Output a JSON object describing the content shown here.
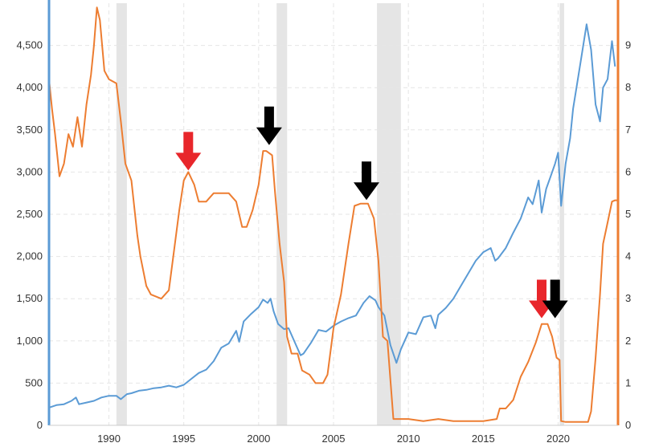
{
  "chart_data": {
    "type": "line",
    "title": "",
    "xlabel": "",
    "ylabel": "",
    "y2label": "",
    "grid": true,
    "legend": "none",
    "xlim": [
      1986,
      2024
    ],
    "ylim": [
      0,
      5000
    ],
    "y2lim": [
      0,
      10
    ],
    "x_ticks": [
      1990,
      1995,
      2000,
      2005,
      2010,
      2015,
      2020
    ],
    "x_tick_labels": [
      "1990",
      "1995",
      "2000",
      "2005",
      "2010",
      "2015",
      "2020"
    ],
    "y_ticks": [
      0,
      500,
      1000,
      1500,
      2000,
      2500,
      3000,
      3500,
      4000,
      4500
    ],
    "y_tick_labels": [
      "0",
      "500",
      "1,000",
      "1,500",
      "2,000",
      "2,500",
      "3,000",
      "3,500",
      "4,000",
      "4,500"
    ],
    "y2_ticks": [
      0,
      1,
      2,
      3,
      4,
      5,
      6,
      7,
      8,
      9
    ],
    "y2_tick_labels": [
      "0",
      "1",
      "2",
      "3",
      "4",
      "5",
      "6",
      "7",
      "8",
      "9"
    ],
    "recessions": [
      [
        1990.5,
        1991.2
      ],
      [
        2001.2,
        2001.9
      ],
      [
        2007.9,
        2009.5
      ],
      [
        2020.1,
        2020.4
      ]
    ],
    "series": [
      {
        "axis": "left",
        "color": "#5b9bd5",
        "points": [
          [
            1986.0,
            210
          ],
          [
            1986.5,
            240
          ],
          [
            1987.0,
            250
          ],
          [
            1987.5,
            290
          ],
          [
            1987.8,
            330
          ],
          [
            1988.0,
            250
          ],
          [
            1988.5,
            270
          ],
          [
            1989.0,
            290
          ],
          [
            1989.5,
            330
          ],
          [
            1990.0,
            350
          ],
          [
            1990.5,
            350
          ],
          [
            1990.8,
            310
          ],
          [
            1991.2,
            370
          ],
          [
            1991.5,
            380
          ],
          [
            1992.0,
            410
          ],
          [
            1992.5,
            420
          ],
          [
            1993.0,
            440
          ],
          [
            1993.5,
            450
          ],
          [
            1994.0,
            470
          ],
          [
            1994.5,
            450
          ],
          [
            1995.0,
            480
          ],
          [
            1995.5,
            550
          ],
          [
            1996.0,
            620
          ],
          [
            1996.5,
            660
          ],
          [
            1997.0,
            760
          ],
          [
            1997.5,
            920
          ],
          [
            1998.0,
            970
          ],
          [
            1998.5,
            1120
          ],
          [
            1998.7,
            990
          ],
          [
            1999.0,
            1230
          ],
          [
            1999.5,
            1320
          ],
          [
            2000.0,
            1400
          ],
          [
            2000.3,
            1490
          ],
          [
            2000.6,
            1450
          ],
          [
            2000.8,
            1500
          ],
          [
            2001.0,
            1350
          ],
          [
            2001.3,
            1200
          ],
          [
            2001.7,
            1140
          ],
          [
            2002.0,
            1150
          ],
          [
            2002.5,
            950
          ],
          [
            2002.8,
            830
          ],
          [
            2003.0,
            850
          ],
          [
            2003.5,
            980
          ],
          [
            2004.0,
            1130
          ],
          [
            2004.5,
            1110
          ],
          [
            2005.0,
            1180
          ],
          [
            2005.5,
            1230
          ],
          [
            2006.0,
            1270
          ],
          [
            2006.5,
            1300
          ],
          [
            2007.0,
            1450
          ],
          [
            2007.4,
            1530
          ],
          [
            2007.8,
            1480
          ],
          [
            2008.0,
            1400
          ],
          [
            2008.4,
            1300
          ],
          [
            2008.8,
            950
          ],
          [
            2009.2,
            740
          ],
          [
            2009.5,
            900
          ],
          [
            2010.0,
            1100
          ],
          [
            2010.5,
            1080
          ],
          [
            2011.0,
            1280
          ],
          [
            2011.5,
            1300
          ],
          [
            2011.8,
            1150
          ],
          [
            2012.0,
            1310
          ],
          [
            2012.5,
            1390
          ],
          [
            2013.0,
            1500
          ],
          [
            2013.5,
            1650
          ],
          [
            2014.0,
            1800
          ],
          [
            2014.5,
            1950
          ],
          [
            2015.0,
            2050
          ],
          [
            2015.5,
            2100
          ],
          [
            2015.8,
            1950
          ],
          [
            2016.0,
            1980
          ],
          [
            2016.5,
            2100
          ],
          [
            2017.0,
            2280
          ],
          [
            2017.5,
            2450
          ],
          [
            2018.0,
            2700
          ],
          [
            2018.3,
            2620
          ],
          [
            2018.7,
            2900
          ],
          [
            2018.9,
            2520
          ],
          [
            2019.2,
            2800
          ],
          [
            2019.5,
            2950
          ],
          [
            2019.8,
            3100
          ],
          [
            2020.0,
            3230
          ],
          [
            2020.2,
            2600
          ],
          [
            2020.5,
            3100
          ],
          [
            2020.8,
            3400
          ],
          [
            2021.0,
            3750
          ],
          [
            2021.5,
            4300
          ],
          [
            2021.9,
            4750
          ],
          [
            2022.2,
            4450
          ],
          [
            2022.5,
            3800
          ],
          [
            2022.8,
            3600
          ],
          [
            2023.0,
            4000
          ],
          [
            2023.3,
            4100
          ],
          [
            2023.6,
            4550
          ],
          [
            2023.8,
            4250
          ]
        ]
      },
      {
        "axis": "right",
        "color": "#ed7d31",
        "points": [
          [
            1986.0,
            8.2
          ],
          [
            1986.2,
            7.5
          ],
          [
            1986.4,
            6.9
          ],
          [
            1986.7,
            5.9
          ],
          [
            1987.0,
            6.2
          ],
          [
            1987.3,
            6.9
          ],
          [
            1987.6,
            6.6
          ],
          [
            1987.9,
            7.3
          ],
          [
            1988.2,
            6.6
          ],
          [
            1988.5,
            7.6
          ],
          [
            1988.8,
            8.3
          ],
          [
            1989.0,
            9.0
          ],
          [
            1989.2,
            9.9
          ],
          [
            1989.4,
            9.6
          ],
          [
            1989.7,
            8.4
          ],
          [
            1990.0,
            8.2
          ],
          [
            1990.5,
            8.1
          ],
          [
            1990.8,
            7.2
          ],
          [
            1991.1,
            6.2
          ],
          [
            1991.5,
            5.8
          ],
          [
            1991.9,
            4.5
          ],
          [
            1992.1,
            4.0
          ],
          [
            1992.5,
            3.3
          ],
          [
            1992.8,
            3.1
          ],
          [
            1993.5,
            3.0
          ],
          [
            1994.0,
            3.2
          ],
          [
            1994.3,
            4.0
          ],
          [
            1994.7,
            5.1
          ],
          [
            1995.0,
            5.8
          ],
          [
            1995.3,
            6.0
          ],
          [
            1995.7,
            5.7
          ],
          [
            1996.0,
            5.3
          ],
          [
            1996.5,
            5.3
          ],
          [
            1997.0,
            5.5
          ],
          [
            1997.5,
            5.5
          ],
          [
            1998.0,
            5.5
          ],
          [
            1998.5,
            5.3
          ],
          [
            1998.9,
            4.7
          ],
          [
            1999.2,
            4.7
          ],
          [
            1999.6,
            5.1
          ],
          [
            2000.0,
            5.7
          ],
          [
            2000.3,
            6.5
          ],
          [
            2000.5,
            6.5
          ],
          [
            2000.9,
            6.4
          ],
          [
            2001.1,
            5.5
          ],
          [
            2001.4,
            4.3
          ],
          [
            2001.7,
            3.4
          ],
          [
            2001.9,
            2.1
          ],
          [
            2002.2,
            1.7
          ],
          [
            2002.6,
            1.7
          ],
          [
            2002.9,
            1.3
          ],
          [
            2003.4,
            1.2
          ],
          [
            2003.8,
            1.0
          ],
          [
            2004.3,
            1.0
          ],
          [
            2004.6,
            1.2
          ],
          [
            2005.0,
            2.3
          ],
          [
            2005.5,
            3.1
          ],
          [
            2006.0,
            4.3
          ],
          [
            2006.4,
            5.2
          ],
          [
            2006.8,
            5.25
          ],
          [
            2007.3,
            5.25
          ],
          [
            2007.7,
            4.9
          ],
          [
            2008.0,
            3.9
          ],
          [
            2008.3,
            2.1
          ],
          [
            2008.6,
            2.0
          ],
          [
            2008.9,
            0.6
          ],
          [
            2009.0,
            0.15
          ],
          [
            2010.0,
            0.15
          ],
          [
            2011.0,
            0.1
          ],
          [
            2012.0,
            0.15
          ],
          [
            2013.0,
            0.1
          ],
          [
            2014.0,
            0.1
          ],
          [
            2015.0,
            0.1
          ],
          [
            2015.9,
            0.15
          ],
          [
            2016.1,
            0.4
          ],
          [
            2016.5,
            0.4
          ],
          [
            2017.0,
            0.6
          ],
          [
            2017.5,
            1.15
          ],
          [
            2018.0,
            1.5
          ],
          [
            2018.5,
            1.95
          ],
          [
            2018.9,
            2.4
          ],
          [
            2019.3,
            2.4
          ],
          [
            2019.6,
            2.1
          ],
          [
            2019.9,
            1.6
          ],
          [
            2020.1,
            1.55
          ],
          [
            2020.2,
            0.1
          ],
          [
            2020.5,
            0.08
          ],
          [
            2021.0,
            0.08
          ],
          [
            2021.5,
            0.08
          ],
          [
            2022.0,
            0.08
          ],
          [
            2022.2,
            0.33
          ],
          [
            2022.5,
            1.6
          ],
          [
            2022.8,
            3.1
          ],
          [
            2023.0,
            4.3
          ],
          [
            2023.3,
            4.8
          ],
          [
            2023.6,
            5.3
          ],
          [
            2023.8,
            5.33
          ],
          [
            2024.0,
            5.33
          ]
        ]
      }
    ],
    "annotations": [
      {
        "kind": "arrow",
        "color": "#e8262b",
        "x": 1995.3,
        "y2": 6.0
      },
      {
        "kind": "arrow",
        "color": "#000000",
        "x": 2000.7,
        "y2": 6.6
      },
      {
        "kind": "arrow",
        "color": "#000000",
        "x": 2007.2,
        "y2": 5.3
      },
      {
        "kind": "arrow",
        "color": "#e8262b",
        "x": 2018.9,
        "y2": 2.5
      },
      {
        "kind": "arrow",
        "color": "#000000",
        "x": 2019.8,
        "y2": 2.5
      }
    ]
  }
}
